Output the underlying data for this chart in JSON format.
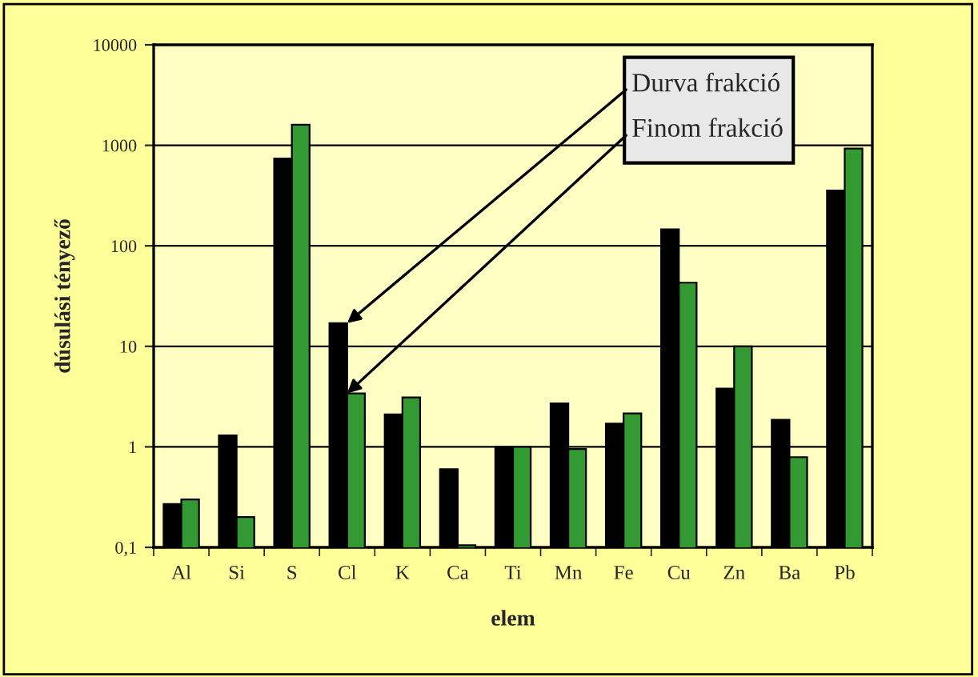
{
  "chart_data": {
    "type": "bar",
    "xlabel": "elem",
    "ylabel": "dúsulási tényező",
    "categories": [
      "Al",
      "Si",
      "S",
      "Cl",
      "K",
      "Ca",
      "Ti",
      "Mn",
      "Fe",
      "Cu",
      "Zn",
      "Ba",
      "Pb"
    ],
    "series": [
      {
        "color": "#000000",
        "values": [
          0.27,
          1.3,
          740,
          17,
          2.1,
          0.6,
          1.0,
          2.7,
          1.7,
          146,
          3.8,
          1.86,
          355
        ]
      },
      {
        "color": "#339933",
        "values": [
          0.3,
          0.2,
          1600,
          3.4,
          3.1,
          0.105,
          1.0,
          0.95,
          2.15,
          43,
          10,
          0.79,
          930
        ]
      }
    ],
    "annotations": [
      {
        "text": "Durva frakció",
        "x": "Cl",
        "y": 17
      },
      {
        "text": "Finom frakció",
        "x": "Cl",
        "y": 3.4
      }
    ],
    "log": "y",
    "ylim": [
      0.1,
      10000
    ],
    "yticks": [
      {
        "value": 0.1,
        "label": "0,1"
      },
      1,
      10,
      100,
      1000,
      10000
    ],
    "grid": "y"
  }
}
